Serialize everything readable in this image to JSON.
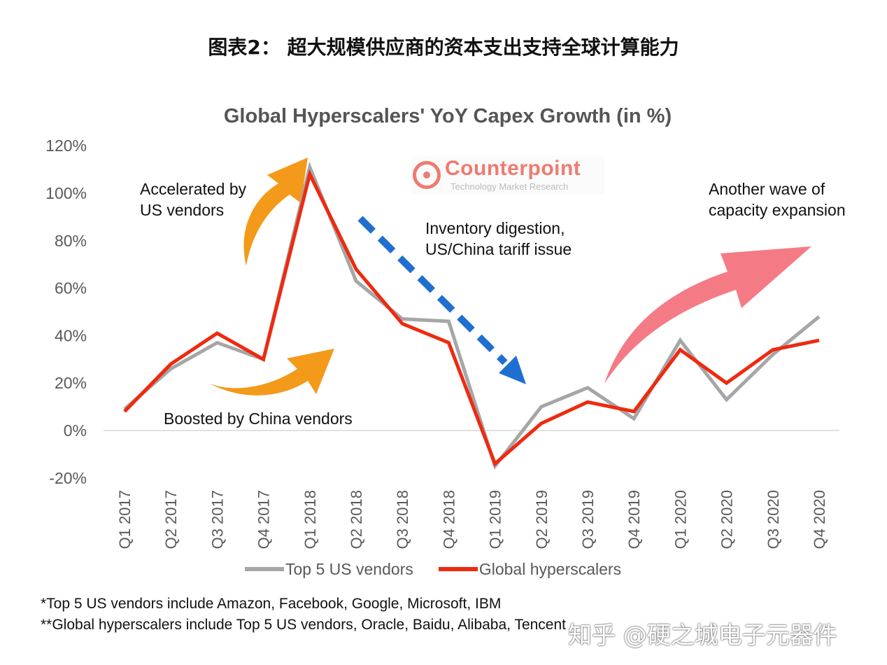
{
  "figure_title": "图表2： 超大规模供应商的资本支出支持全球计算能力",
  "watermark": "知乎 @硬之城电子元器件",
  "logo": {
    "name": "Counterpoint",
    "subtitle": "Technology Market Research"
  },
  "footnotes": [
    "*Top 5 US vendors include Amazon, Facebook, Google, Microsoft, IBM",
    "**Global hyperscalers include Top 5 US vendors, Oracle, Baidu, Alibaba, Tencent"
  ],
  "colors": {
    "us_vendors": "#a6a6a6",
    "global_hyperscalers": "#ee2a10",
    "orange_arrow": "#f39a1a",
    "blue_arrow": "#1f6fd1",
    "pink_arrow": "#f47b85"
  },
  "chart_data": {
    "type": "line",
    "title": "Global Hyperscalers' YoY Capex Growth (in %)",
    "xlabel": "",
    "ylabel": "",
    "ylim": [
      -20,
      120
    ],
    "yticks": [
      -20,
      0,
      20,
      40,
      60,
      80,
      100,
      120
    ],
    "ytick_labels": [
      "-20%",
      "0%",
      "20%",
      "40%",
      "60%",
      "80%",
      "100%",
      "120%"
    ],
    "categories": [
      "Q1 2017",
      "Q2 2017",
      "Q3 2017",
      "Q4 2017",
      "Q1 2018",
      "Q2 2018",
      "Q3 2018",
      "Q4 2018",
      "Q1 2019",
      "Q2 2019",
      "Q3 2019",
      "Q4 2019",
      "Q1 2020",
      "Q2 2020",
      "Q3 2020",
      "Q4 2020"
    ],
    "series": [
      {
        "name": "Top 5 US vendors",
        "values": [
          9,
          26,
          37,
          30,
          111,
          63,
          47,
          46,
          -15,
          10,
          18,
          5,
          38,
          13,
          32,
          48
        ]
      },
      {
        "name": "Global hyperscalers",
        "values": [
          8,
          28,
          41,
          30,
          108,
          68,
          45,
          37,
          -14,
          3,
          12,
          8,
          34,
          20,
          34,
          38
        ]
      }
    ],
    "legend_position": "bottom",
    "grid": false,
    "annotations": [
      "Accelerated by",
      "US vendors",
      "Boosted by China vendors",
      "Inventory digestion,",
      "US/China tariff issue",
      "Another wave of",
      "capacity expansion"
    ]
  }
}
